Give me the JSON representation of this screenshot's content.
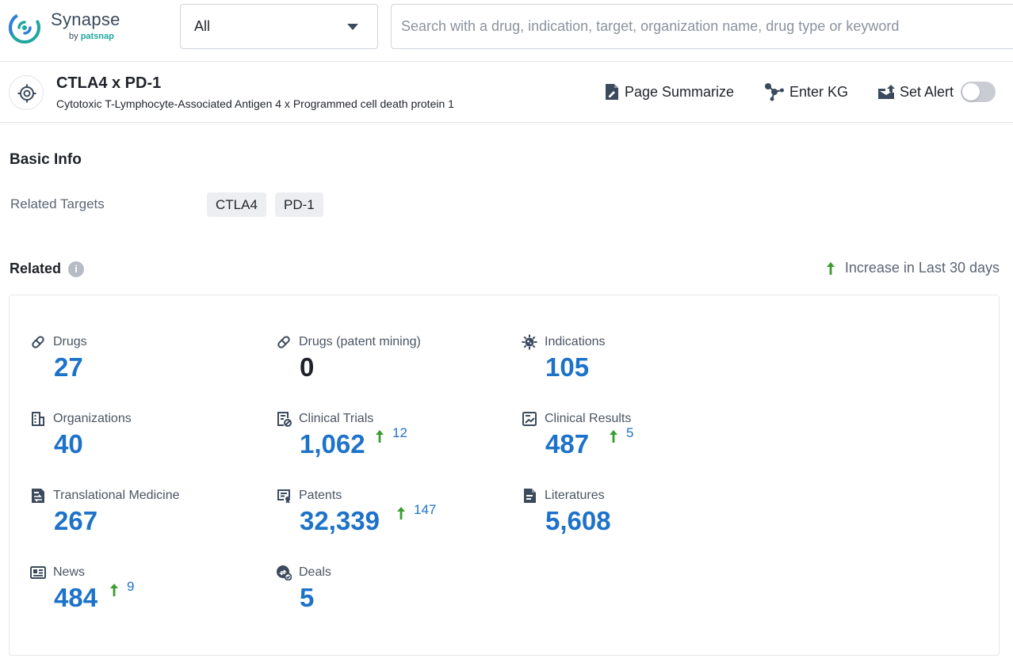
{
  "logo": {
    "name": "Synapse",
    "by": "by",
    "brand": "patsnap"
  },
  "search": {
    "scope_value": "All",
    "placeholder": "Search with a drug, indication, target, organization name, drug type or keyword"
  },
  "target": {
    "title": "CTLA4 x PD-1",
    "subtitle": "Cytotoxic T-Lymphocyte-Associated Antigen 4 x Programmed cell death protein 1"
  },
  "actions": {
    "summarize": "Page Summarize",
    "kg": "Enter KG",
    "alert": "Set Alert",
    "alert_enabled": false
  },
  "basic_info": {
    "title": "Basic Info",
    "related_targets_label": "Related Targets",
    "related_targets": [
      "CTLA4",
      "PD-1"
    ]
  },
  "related": {
    "title": "Related",
    "legend": "Increase in Last 30 days",
    "stats": [
      {
        "label": "Drugs",
        "value": "27",
        "icon": "pill-icon"
      },
      {
        "label": "Drugs (patent mining)",
        "value": "0",
        "icon": "pill-icon"
      },
      {
        "label": "Indications",
        "value": "105",
        "icon": "virus-icon"
      },
      {
        "label": "Organizations",
        "value": "40",
        "icon": "building-icon"
      },
      {
        "label": "Clinical Trials",
        "value": "1,062",
        "increase": "12",
        "icon": "clinical-trial-icon"
      },
      {
        "label": "Clinical Results",
        "value": "487",
        "increase": "5",
        "icon": "chart-report-icon"
      },
      {
        "label": "Translational Medicine",
        "value": "267",
        "icon": "translational-icon"
      },
      {
        "label": "Patents",
        "value": "32,339",
        "increase": "147",
        "icon": "patent-icon"
      },
      {
        "label": "Literatures",
        "value": "5,608",
        "icon": "document-icon"
      },
      {
        "label": "News",
        "value": "484",
        "increase": "9",
        "icon": "news-icon"
      },
      {
        "label": "Deals",
        "value": "5",
        "icon": "deal-icon"
      }
    ]
  },
  "colors": {
    "accent_blue": "#1d72c9",
    "increase_green": "#3a9d2f",
    "brand_teal": "#1ea7a0"
  }
}
